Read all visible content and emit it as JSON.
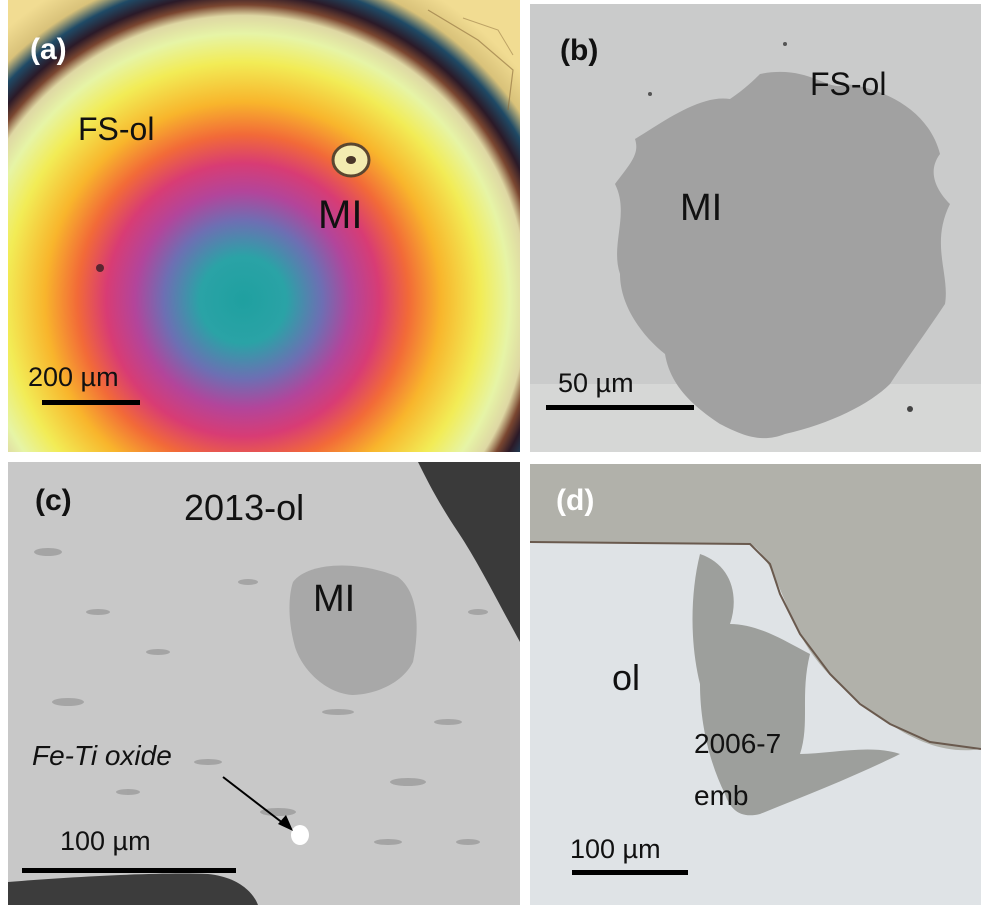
{
  "figure": {
    "panels": [
      {
        "letter": "(a)",
        "labels": {
          "host": "FS-ol",
          "inclusion": "MI"
        },
        "scale_bar": "200 µm"
      },
      {
        "letter": "(b)",
        "labels": {
          "host": "FS-ol",
          "inclusion": "MI"
        },
        "scale_bar": "50 µm"
      },
      {
        "letter": "(c)",
        "labels": {
          "host": "2013-ol",
          "inclusion": "MI",
          "phase": "Fe-Ti oxide"
        },
        "scale_bar": "100 µm"
      },
      {
        "letter": "(d)",
        "labels": {
          "host": "ol",
          "embayment_line1": "2006-7",
          "embayment_line2": "emb"
        },
        "scale_bar": "100 µm"
      }
    ]
  }
}
